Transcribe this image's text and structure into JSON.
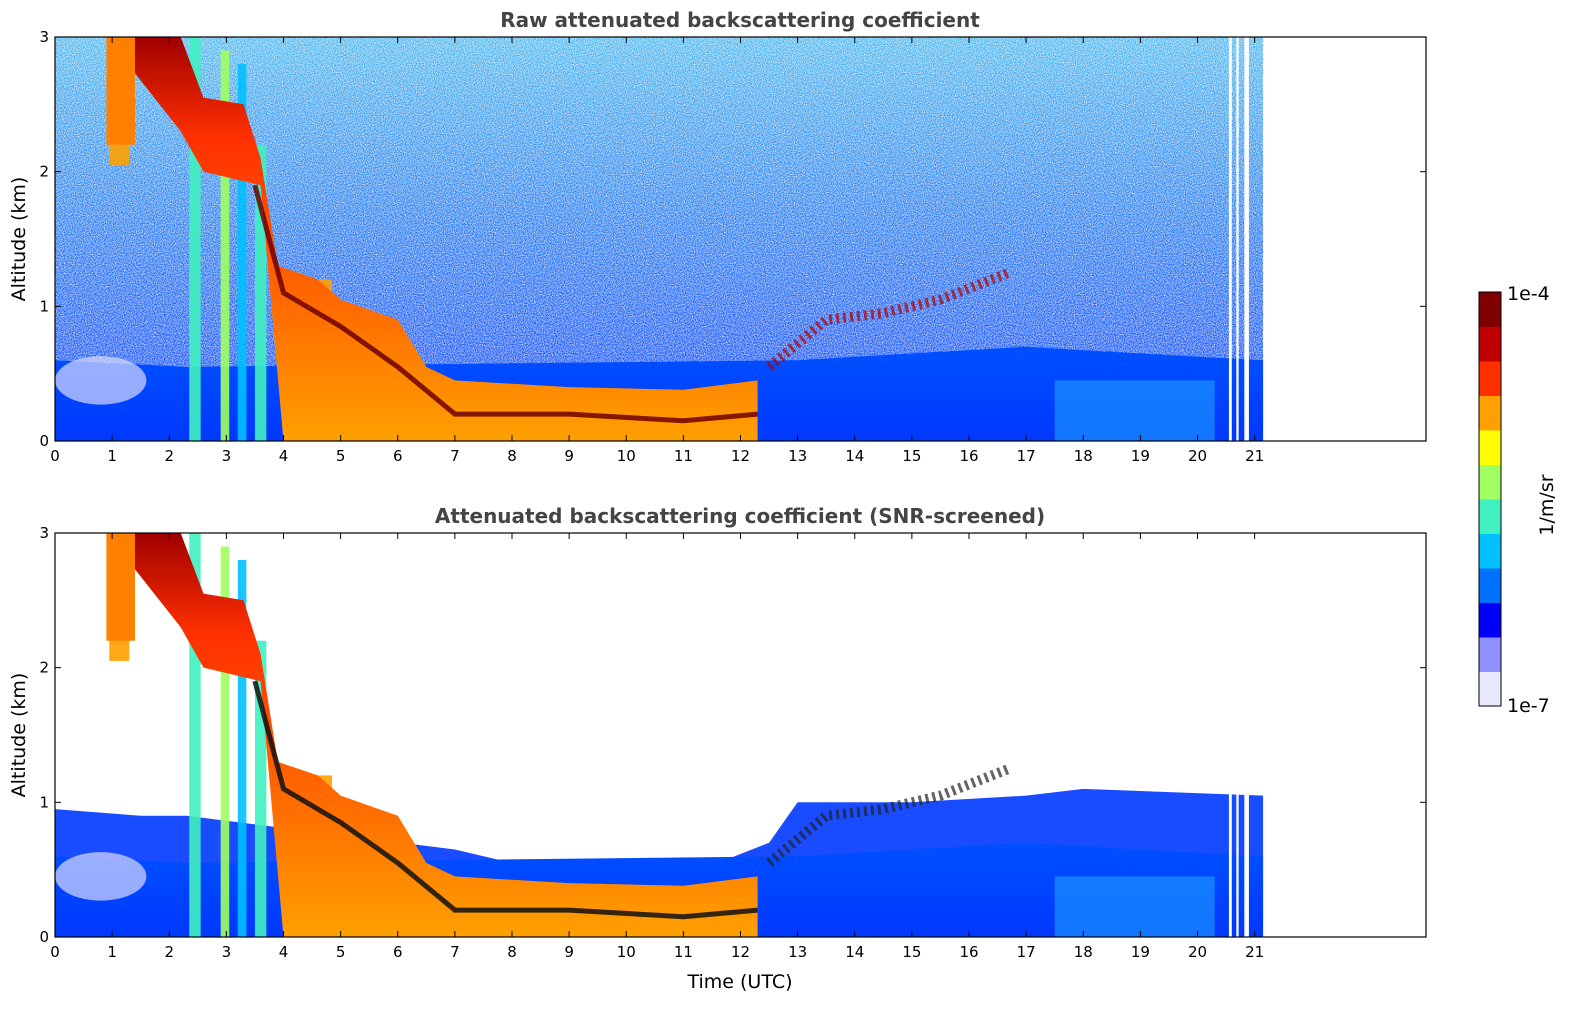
{
  "chart_data": [
    {
      "type": "heatmap",
      "title": "Raw attenuated backscattering coefficient",
      "xlabel": "",
      "ylabel": "Altitude (km)",
      "xlim": [
        0,
        24
      ],
      "ylim": [
        0,
        3
      ],
      "x_ticks": [
        0,
        1,
        2,
        3,
        4,
        5,
        6,
        7,
        8,
        9,
        10,
        11,
        12,
        13,
        14,
        15,
        16,
        17,
        18,
        19,
        20,
        21
      ],
      "y_ticks": [
        0,
        1,
        2,
        3
      ],
      "data_end_time": 21.15,
      "layers": {
        "cloud_top_km": [
          [
            0.9,
            3.0
          ],
          [
            2.2,
            3.0
          ],
          [
            2.6,
            2.55
          ],
          [
            3.3,
            2.5
          ],
          [
            3.6,
            2.1
          ],
          [
            3.9,
            1.3
          ],
          [
            4.6,
            1.2
          ],
          [
            5.0,
            1.05
          ],
          [
            6.0,
            0.9
          ],
          [
            6.5,
            0.55
          ],
          [
            7,
            0.45
          ],
          [
            9,
            0.4
          ],
          [
            11,
            0.38
          ],
          [
            12.3,
            0.45
          ]
        ],
        "cloud_base_km": [
          [
            3.5,
            1.9
          ],
          [
            4.0,
            1.1
          ],
          [
            5.0,
            0.85
          ],
          [
            6.0,
            0.55
          ],
          [
            7,
            0.2
          ],
          [
            9,
            0.2
          ],
          [
            11,
            0.15
          ],
          [
            12.3,
            0.2
          ]
        ],
        "upper_layer_km": [
          [
            12.5,
            0.55
          ],
          [
            13.5,
            0.9
          ],
          [
            14.5,
            0.95
          ],
          [
            15.5,
            1.05
          ],
          [
            16.7,
            1.25
          ]
        ],
        "boundary_layer_top_km": [
          [
            0,
            0.6
          ],
          [
            2.3,
            0.55
          ],
          [
            13,
            0.6
          ],
          [
            17,
            0.7
          ],
          [
            19,
            0.65
          ],
          [
            21.15,
            0.6
          ]
        ]
      },
      "colorbar": {
        "label": "1/m/sr",
        "min_label": "1e-7",
        "max_label": "1e-4",
        "colors": [
          "#e8e8ff",
          "#9090ff",
          "#0000ff",
          "#0070ff",
          "#00c0ff",
          "#40f0c0",
          "#a0ff60",
          "#ffff00",
          "#ffa000",
          "#ff3000",
          "#c00000",
          "#800000"
        ]
      }
    },
    {
      "type": "heatmap",
      "title": "Attenuated backscattering coefficient (SNR-screened)",
      "xlabel": "Time (UTC)",
      "ylabel": "Altitude (km)",
      "xlim": [
        0,
        24
      ],
      "ylim": [
        0,
        3
      ],
      "x_ticks": [
        0,
        1,
        2,
        3,
        4,
        5,
        6,
        7,
        8,
        9,
        10,
        11,
        12,
        13,
        14,
        15,
        16,
        17,
        18,
        19,
        20,
        21
      ],
      "y_ticks": [
        0,
        1,
        2,
        3
      ],
      "data_end_time": 21.15,
      "screened_top_km": [
        [
          0,
          0.95
        ],
        [
          1.5,
          0.9
        ],
        [
          2.3,
          0.9
        ],
        [
          7,
          0.65
        ],
        [
          9,
          0.45
        ],
        [
          11,
          0.45
        ],
        [
          12.5,
          0.7
        ],
        [
          13,
          1.0
        ],
        [
          15,
          1.0
        ],
        [
          17,
          1.05
        ],
        [
          18,
          1.1
        ],
        [
          21.15,
          1.05
        ]
      ]
    }
  ]
}
